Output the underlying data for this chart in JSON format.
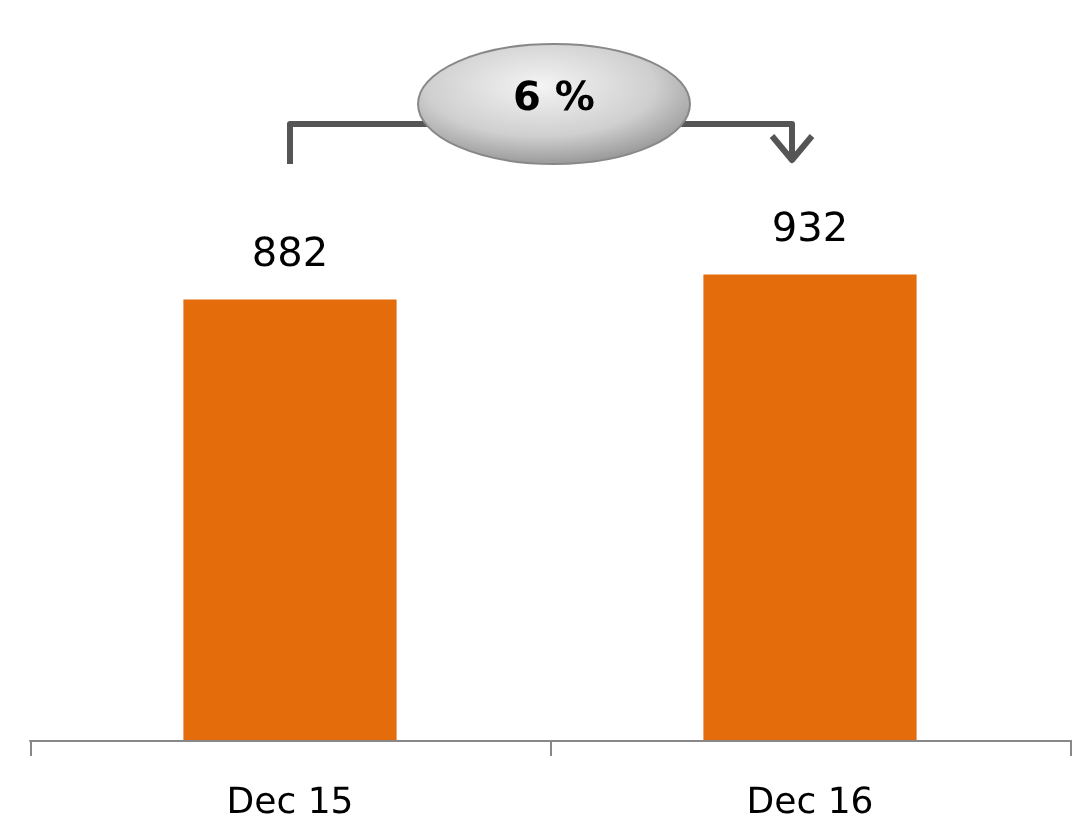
{
  "chart_data": {
    "type": "bar",
    "categories": [
      "Dec 15",
      "Dec 16"
    ],
    "values": [
      882,
      932
    ],
    "color": "#e46c0a",
    "data_labels": true,
    "annotations": [
      "6 %"
    ]
  }
}
